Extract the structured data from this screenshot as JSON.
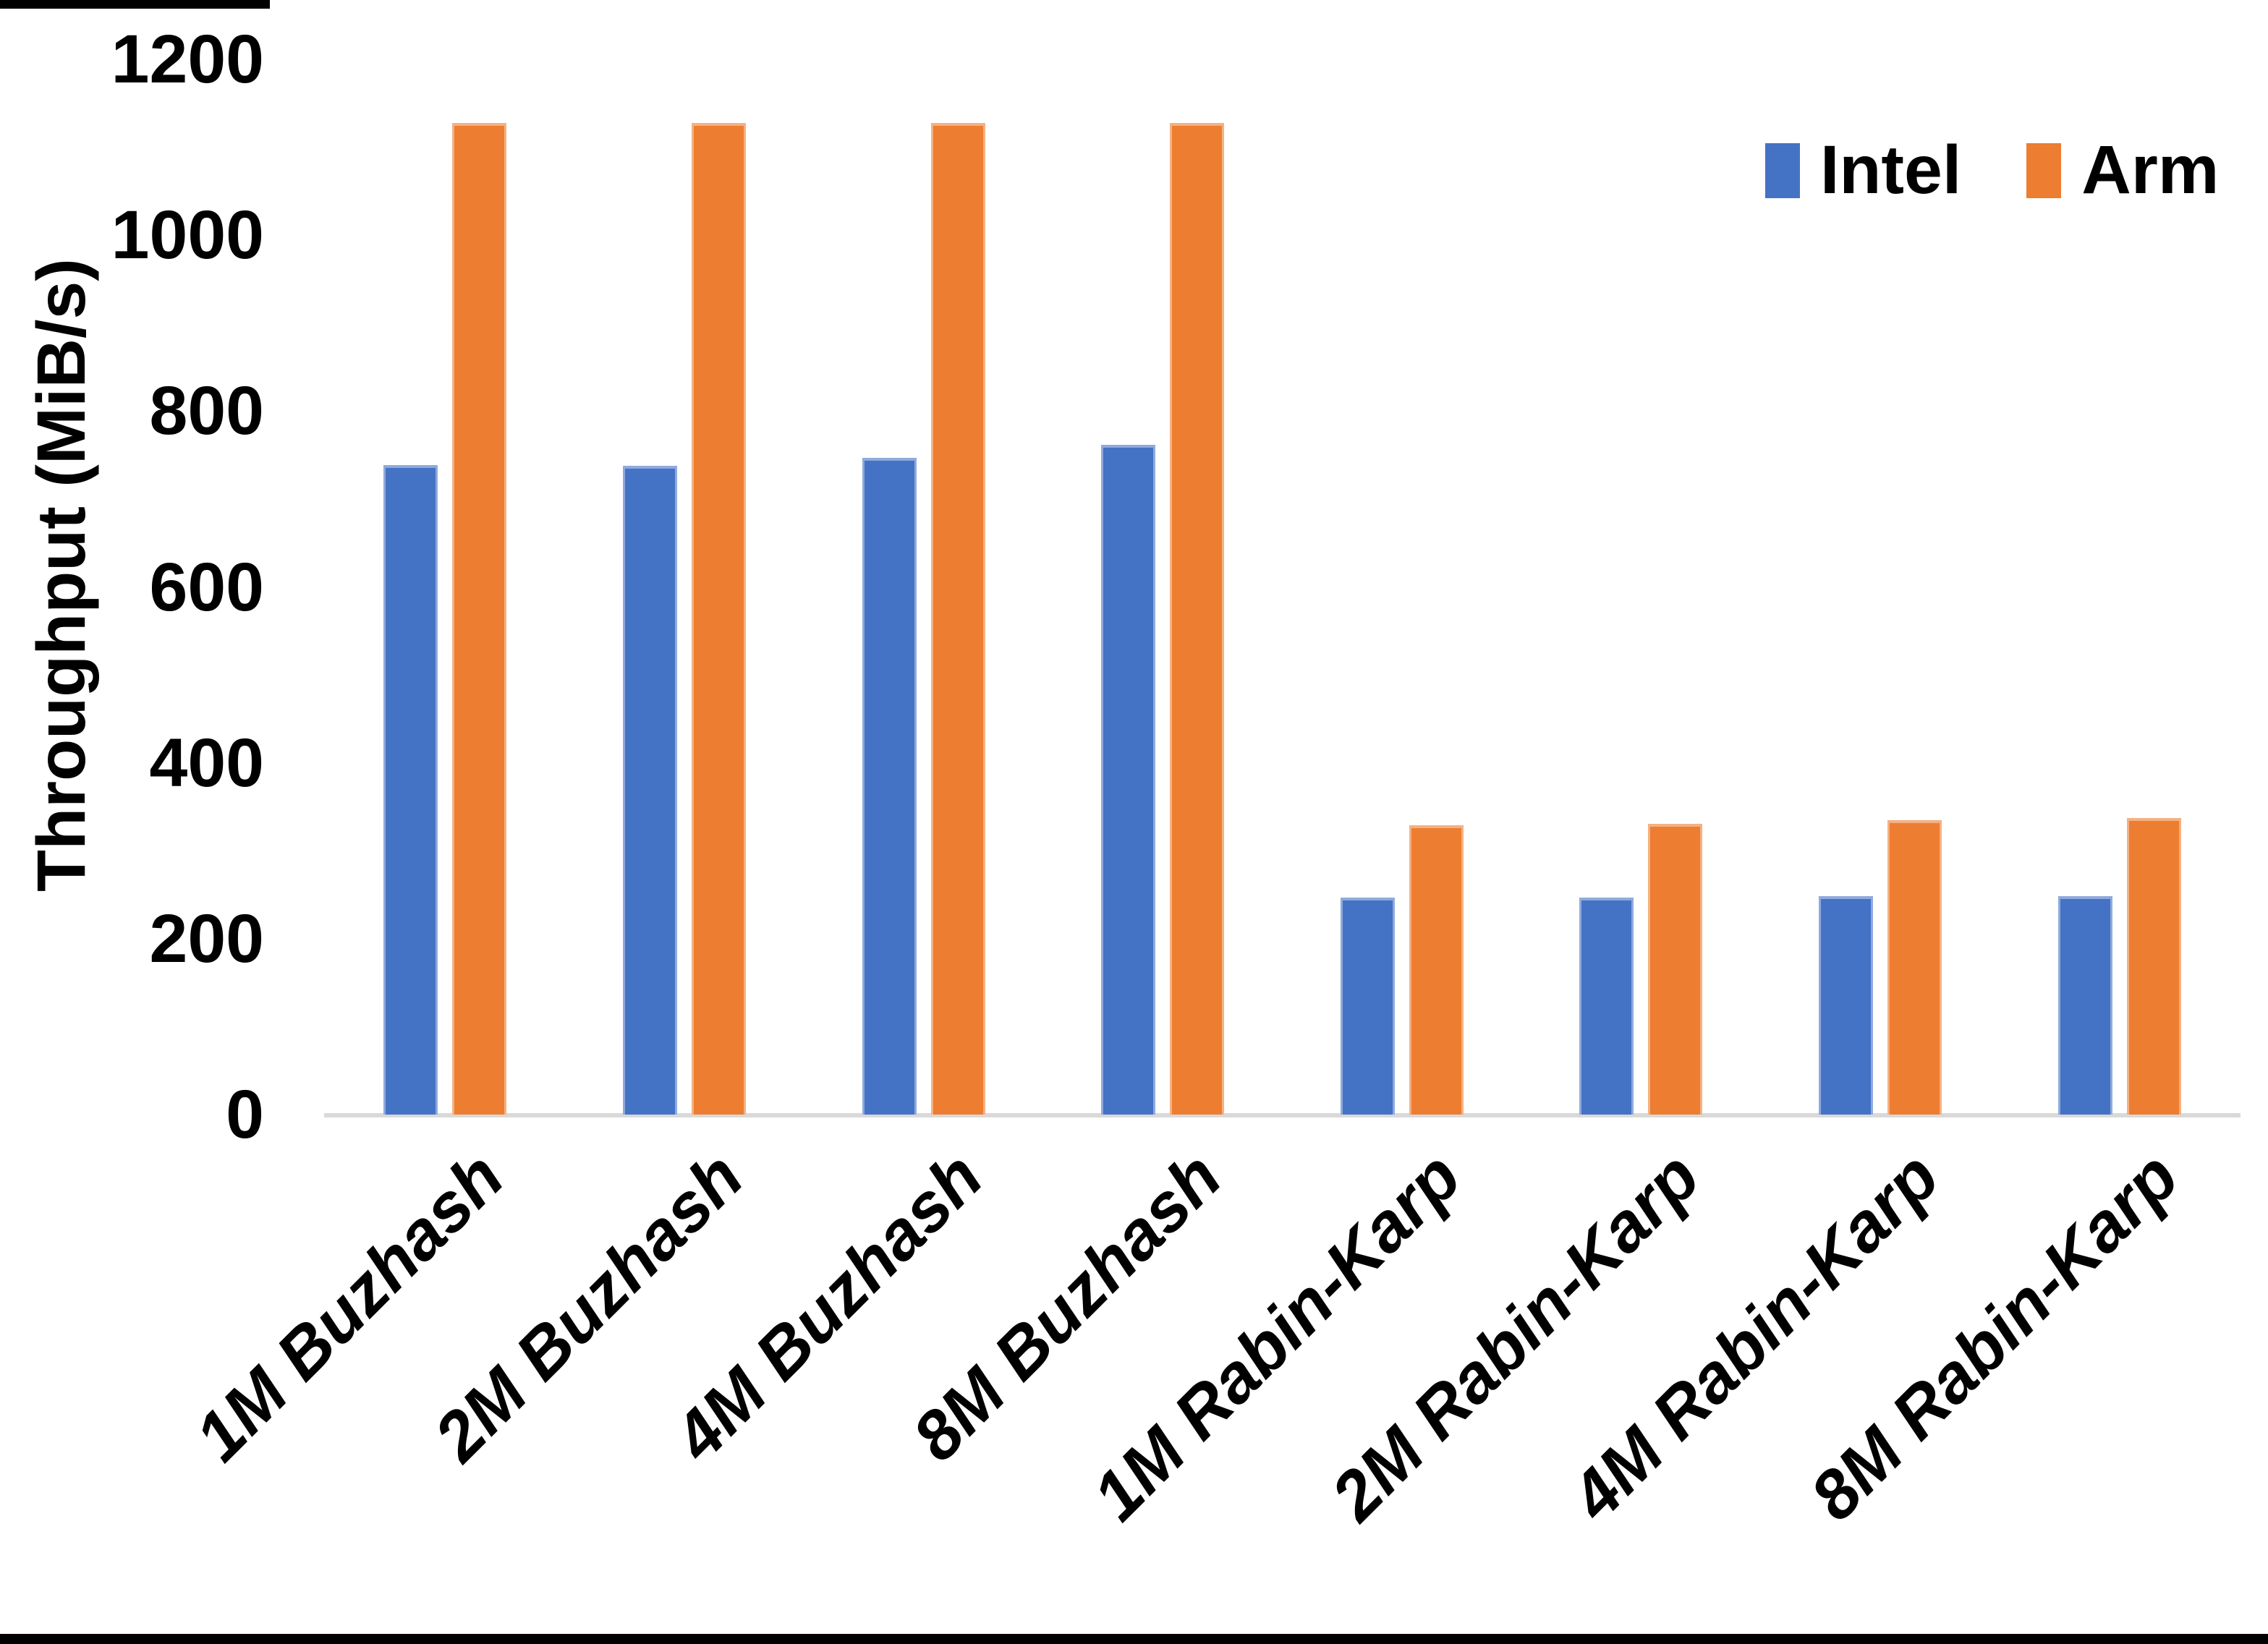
{
  "chart_data": {
    "type": "bar",
    "title": "",
    "xlabel": "",
    "ylabel": "Throughput (MiB/s)",
    "ylim": [
      0,
      1200
    ],
    "yticks": [
      0,
      200,
      400,
      600,
      800,
      1000,
      1200
    ],
    "grid": false,
    "legend_position": "top-right",
    "categories": [
      "1M Buzhash",
      "2M Buzhash",
      "4M Buzhash",
      "8M Buzhash",
      "1M Rabin-Karp",
      "2M Rabin-Karp",
      "4M Rabin-Karp",
      "8M Rabin-Karp"
    ],
    "series": [
      {
        "name": "Intel",
        "color": "#4472C4",
        "edge_color": "#8FAADC",
        "values": [
          739,
          738,
          747,
          762,
          247,
          247,
          248,
          248
        ]
      },
      {
        "name": "Arm",
        "color": "#ED7D31",
        "edge_color": "#F4B183",
        "values": [
          1128,
          1128,
          1128,
          1128,
          329,
          331,
          335,
          337
        ]
      }
    ],
    "axis_line_color": "#D9D9D9"
  }
}
